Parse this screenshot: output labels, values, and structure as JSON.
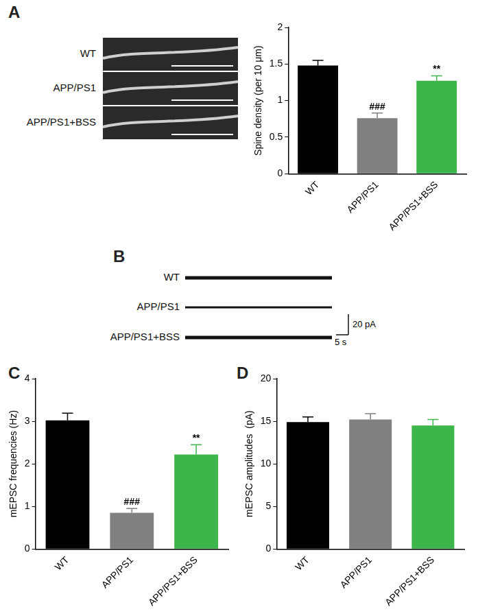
{
  "panel_labels": [
    "A",
    "B",
    "C",
    "D"
  ],
  "micrographs": {
    "labels": [
      "WT",
      "APP/PS1",
      "APP/PS1+BSS"
    ]
  },
  "traces": {
    "labels": [
      "WT",
      "APP/PS1",
      "APP/PS1+BSS"
    ],
    "scale_labels": [
      "20 pA",
      "5 s"
    ]
  },
  "chart_data": [
    {
      "type": "bar",
      "y_label": "Spine density (per 10 μm)",
      "categories": [
        "WT",
        "APP/PS1",
        "APP/PS1+BSS"
      ],
      "values": [
        1.48,
        0.76,
        1.27
      ],
      "errors": [
        0.07,
        0.07,
        0.07
      ],
      "annotations": [
        null,
        "###",
        "**"
      ],
      "colors": [
        "#000000",
        "#808080",
        "#3cb54a"
      ],
      "ylim": [
        0,
        2
      ],
      "yticks": [
        0,
        0.5,
        1,
        1.5,
        2
      ],
      "grid": false
    },
    {
      "type": "bar",
      "y_label": "mEPSC frequencies (Hz)",
      "categories": [
        "WT",
        "APP/PS1",
        "APP/PS1+BSS"
      ],
      "values": [
        3.02,
        0.85,
        2.22
      ],
      "errors": [
        0.17,
        0.1,
        0.23
      ],
      "annotations": [
        null,
        "###",
        "**"
      ],
      "colors": [
        "#000000",
        "#808080",
        "#3cb54a"
      ],
      "ylim": [
        0,
        4
      ],
      "yticks": [
        0,
        1,
        2,
        3,
        4
      ],
      "grid": false
    },
    {
      "type": "bar",
      "y_label": "mEPSC amplitudes  (pA)",
      "categories": [
        "WT",
        "APP/PS1",
        "APP/PS1+BSS"
      ],
      "values": [
        14.9,
        15.2,
        14.5
      ],
      "errors": [
        0.6,
        0.7,
        0.7
      ],
      "colors": [
        "#000000",
        "#808080",
        "#3cb54a"
      ],
      "ylim": [
        0,
        20
      ],
      "yticks": [
        0,
        5,
        10,
        15,
        20
      ],
      "grid": false
    }
  ]
}
